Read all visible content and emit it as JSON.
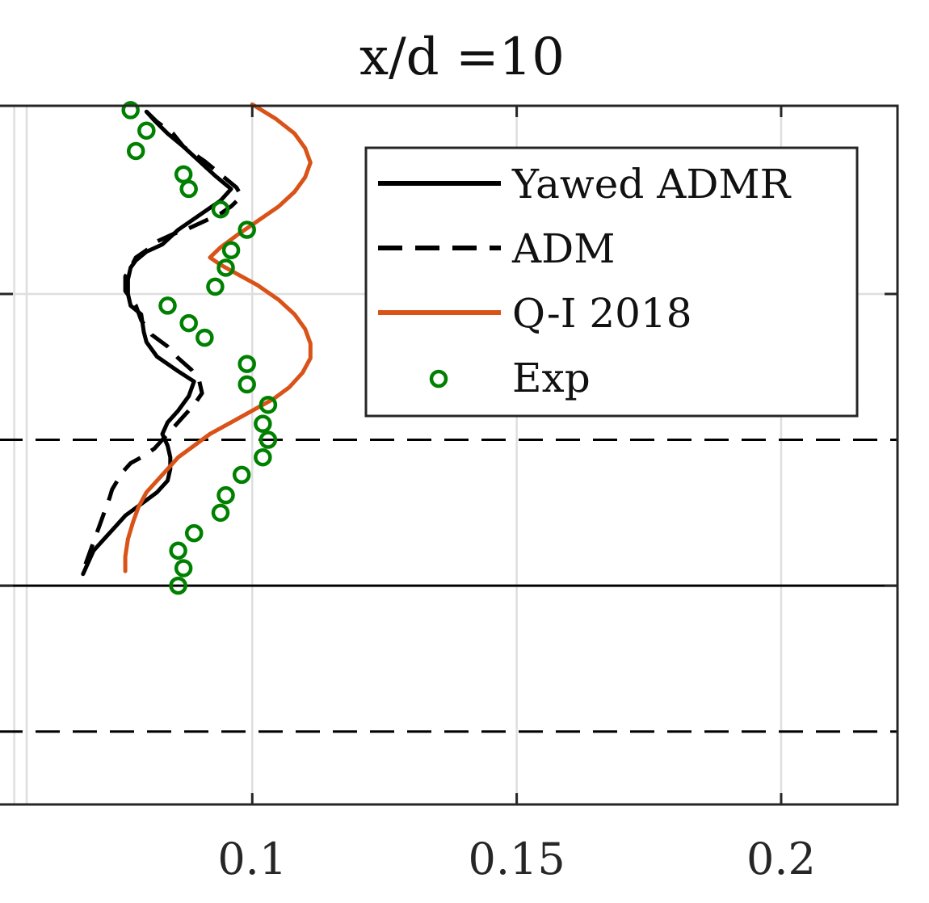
{
  "chart_data": {
    "type": "line",
    "title": "x/d =10",
    "xlabel": "",
    "ylabel": "",
    "xlim": [
      0.052,
      0.222
    ],
    "ylim": [
      -0.75,
      1.645
    ],
    "xticks": [
      {
        "value": 0.1,
        "label": "0.1"
      },
      {
        "value": 0.15,
        "label": "0.15"
      },
      {
        "value": 0.2,
        "label": "0.2"
      }
    ],
    "yticks": [
      0,
      1
    ],
    "grid": true,
    "reference_lines": [
      {
        "y": 0,
        "style": "solid",
        "color": "#000000"
      },
      {
        "y": 0.5,
        "style": "dashed",
        "color": "#000000"
      },
      {
        "y": -0.5,
        "style": "dashed",
        "color": "#000000"
      }
    ],
    "legend_position": "top-right",
    "series": [
      {
        "name": "Yawed ADMR",
        "style": "solid",
        "color": "#000000",
        "points": [
          [
            0.08,
            1.625
          ],
          [
            0.0815,
            1.595
          ],
          [
            0.084,
            1.55
          ],
          [
            0.087,
            1.505
          ],
          [
            0.09,
            1.455
          ],
          [
            0.093,
            1.405
          ],
          [
            0.096,
            1.36
          ],
          [
            0.094,
            1.32
          ],
          [
            0.09,
            1.27
          ],
          [
            0.086,
            1.22
          ],
          [
            0.083,
            1.17
          ],
          [
            0.08,
            1.145
          ],
          [
            0.078,
            1.115
          ],
          [
            0.077,
            1.09
          ],
          [
            0.0765,
            1.05
          ],
          [
            0.0765,
            1.0
          ],
          [
            0.077,
            0.96
          ],
          [
            0.079,
            0.93
          ],
          [
            0.0795,
            0.87
          ],
          [
            0.08,
            0.835
          ],
          [
            0.082,
            0.785
          ],
          [
            0.086,
            0.735
          ],
          [
            0.089,
            0.7
          ],
          [
            0.088,
            0.65
          ],
          [
            0.086,
            0.6
          ],
          [
            0.084,
            0.56
          ],
          [
            0.083,
            0.52
          ],
          [
            0.084,
            0.48
          ],
          [
            0.0845,
            0.44
          ],
          [
            0.0845,
            0.4
          ],
          [
            0.084,
            0.36
          ],
          [
            0.082,
            0.32
          ],
          [
            0.079,
            0.28
          ],
          [
            0.076,
            0.24
          ],
          [
            0.074,
            0.2
          ],
          [
            0.072,
            0.16
          ],
          [
            0.07,
            0.12
          ],
          [
            0.069,
            0.08
          ],
          [
            0.068,
            0.04
          ]
        ]
      },
      {
        "name": "ADM",
        "style": "dashed",
        "color": "#000000",
        "points": [
          [
            0.08,
            1.625
          ],
          [
            0.082,
            1.59
          ],
          [
            0.085,
            1.55
          ],
          [
            0.087,
            1.505
          ],
          [
            0.091,
            1.455
          ],
          [
            0.094,
            1.41
          ],
          [
            0.097,
            1.365
          ],
          [
            0.098,
            1.335
          ],
          [
            0.096,
            1.3
          ],
          [
            0.094,
            1.275
          ],
          [
            0.091,
            1.25
          ],
          [
            0.088,
            1.225
          ],
          [
            0.085,
            1.205
          ],
          [
            0.082,
            1.18
          ],
          [
            0.08,
            1.15
          ],
          [
            0.078,
            1.125
          ],
          [
            0.077,
            1.09
          ],
          [
            0.076,
            1.06
          ],
          [
            0.076,
            1.01
          ],
          [
            0.078,
            0.96
          ],
          [
            0.079,
            0.91
          ],
          [
            0.081,
            0.86
          ],
          [
            0.084,
            0.82
          ],
          [
            0.086,
            0.78
          ],
          [
            0.0885,
            0.74
          ],
          [
            0.09,
            0.7
          ],
          [
            0.0905,
            0.66
          ],
          [
            0.089,
            0.62
          ],
          [
            0.087,
            0.58
          ],
          [
            0.085,
            0.54
          ],
          [
            0.083,
            0.5
          ],
          [
            0.0815,
            0.47
          ],
          [
            0.079,
            0.44
          ],
          [
            0.077,
            0.42
          ],
          [
            0.0755,
            0.39
          ],
          [
            0.0745,
            0.36
          ],
          [
            0.0735,
            0.33
          ],
          [
            0.073,
            0.3
          ],
          [
            0.072,
            0.25
          ],
          [
            0.071,
            0.2
          ],
          [
            0.07,
            0.15
          ],
          [
            0.069,
            0.1
          ],
          [
            0.068,
            0.05
          ]
        ]
      },
      {
        "name": "Q-I 2018",
        "style": "solid",
        "color": "#d95319",
        "points": [
          [
            0.1,
            1.65
          ],
          [
            0.1045,
            1.6
          ],
          [
            0.108,
            1.55
          ],
          [
            0.11,
            1.5
          ],
          [
            0.111,
            1.45
          ],
          [
            0.11,
            1.4
          ],
          [
            0.108,
            1.35
          ],
          [
            0.105,
            1.3
          ],
          [
            0.101,
            1.25
          ],
          [
            0.097,
            1.2
          ],
          [
            0.094,
            1.16
          ],
          [
            0.092,
            1.125
          ],
          [
            0.094,
            1.1
          ],
          [
            0.097,
            1.07
          ],
          [
            0.101,
            1.03
          ],
          [
            0.105,
            0.98
          ],
          [
            0.108,
            0.93
          ],
          [
            0.11,
            0.88
          ],
          [
            0.111,
            0.83
          ],
          [
            0.111,
            0.78
          ],
          [
            0.1095,
            0.73
          ],
          [
            0.107,
            0.68
          ],
          [
            0.104,
            0.64
          ],
          [
            0.1,
            0.6
          ],
          [
            0.096,
            0.56
          ],
          [
            0.092,
            0.52
          ],
          [
            0.089,
            0.48
          ],
          [
            0.086,
            0.44
          ],
          [
            0.084,
            0.4
          ],
          [
            0.082,
            0.36
          ],
          [
            0.08,
            0.32
          ],
          [
            0.0785,
            0.27
          ],
          [
            0.0775,
            0.22
          ],
          [
            0.0765,
            0.16
          ],
          [
            0.076,
            0.1
          ],
          [
            0.076,
            0.05
          ]
        ]
      },
      {
        "name": "Exp",
        "style": "markers",
        "color": "#008000",
        "points": [
          [
            0.077,
            1.63
          ],
          [
            0.08,
            1.56
          ],
          [
            0.078,
            1.49
          ],
          [
            0.087,
            1.41
          ],
          [
            0.088,
            1.36
          ],
          [
            0.094,
            1.29
          ],
          [
            0.099,
            1.22
          ],
          [
            0.096,
            1.15
          ],
          [
            0.095,
            1.09
          ],
          [
            0.093,
            1.025
          ],
          [
            0.084,
            0.96
          ],
          [
            0.088,
            0.9
          ],
          [
            0.091,
            0.85
          ],
          [
            0.099,
            0.76
          ],
          [
            0.099,
            0.69
          ],
          [
            0.103,
            0.62
          ],
          [
            0.102,
            0.555
          ],
          [
            0.103,
            0.5
          ],
          [
            0.102,
            0.44
          ],
          [
            0.098,
            0.38
          ],
          [
            0.095,
            0.31
          ],
          [
            0.094,
            0.25
          ],
          [
            0.089,
            0.18
          ],
          [
            0.086,
            0.12
          ],
          [
            0.087,
            0.06
          ],
          [
            0.086,
            0.0
          ]
        ]
      }
    ]
  }
}
